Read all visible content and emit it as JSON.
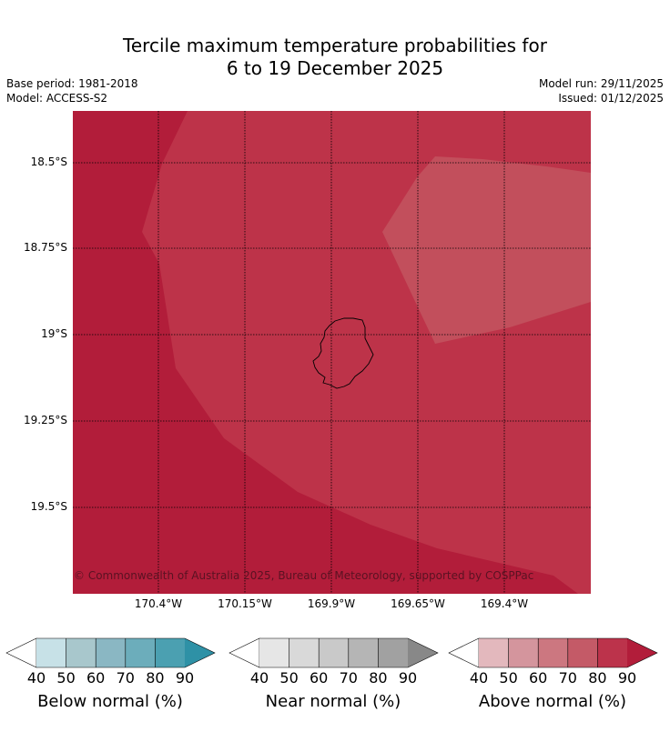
{
  "title_line1": "Tercile maximum temperature probabilities for",
  "title_line2": "6 to 19 December 2025",
  "base_period": "Base period: 1981-2018",
  "model": "Model: ACCESS-S2",
  "model_run": "Model run: 29/11/2025",
  "issued": "Issued: 01/12/2025",
  "copyright": "© Commonwealth of Australia 2025, Bureau of Meteorology, supported by COSPPac",
  "lat_labels": [
    "18.5°S",
    "18.75°S",
    "19°S",
    "19.25°S",
    "19.5°S"
  ],
  "lon_labels": [
    "170.4°W",
    "170.15°W",
    "169.9°W",
    "169.65°W",
    "169.4°W"
  ],
  "colors": {
    "above_90": "#b21d3a",
    "above_80": "#bd3349",
    "above_70": "#c24f5c",
    "outline": "#000000",
    "grid": "#000000"
  },
  "legends": [
    {
      "name": "below",
      "title": "Below normal (%)",
      "ticks": [
        "40",
        "50",
        "60",
        "70",
        "80",
        "90"
      ],
      "colors": [
        "#c7e1e7",
        "#a8c7cc",
        "#8ab7c3",
        "#6cadbb",
        "#4ba0b1",
        "#2e91a6"
      ]
    },
    {
      "name": "near",
      "title": "Near normal (%)",
      "ticks": [
        "40",
        "50",
        "60",
        "70",
        "80",
        "90"
      ],
      "colors": [
        "#e6e6e6",
        "#d9d9d9",
        "#c9c9c9",
        "#b5b5b5",
        "#a1a1a1",
        "#888888"
      ]
    },
    {
      "name": "above",
      "title": "Above normal (%)",
      "ticks": [
        "40",
        "50",
        "60",
        "70",
        "80",
        "90"
      ],
      "colors": [
        "#e3b8bd",
        "#d4959d",
        "#cc7780",
        "#c45a67",
        "#bc334b",
        "#b21d3a"
      ]
    }
  ]
}
